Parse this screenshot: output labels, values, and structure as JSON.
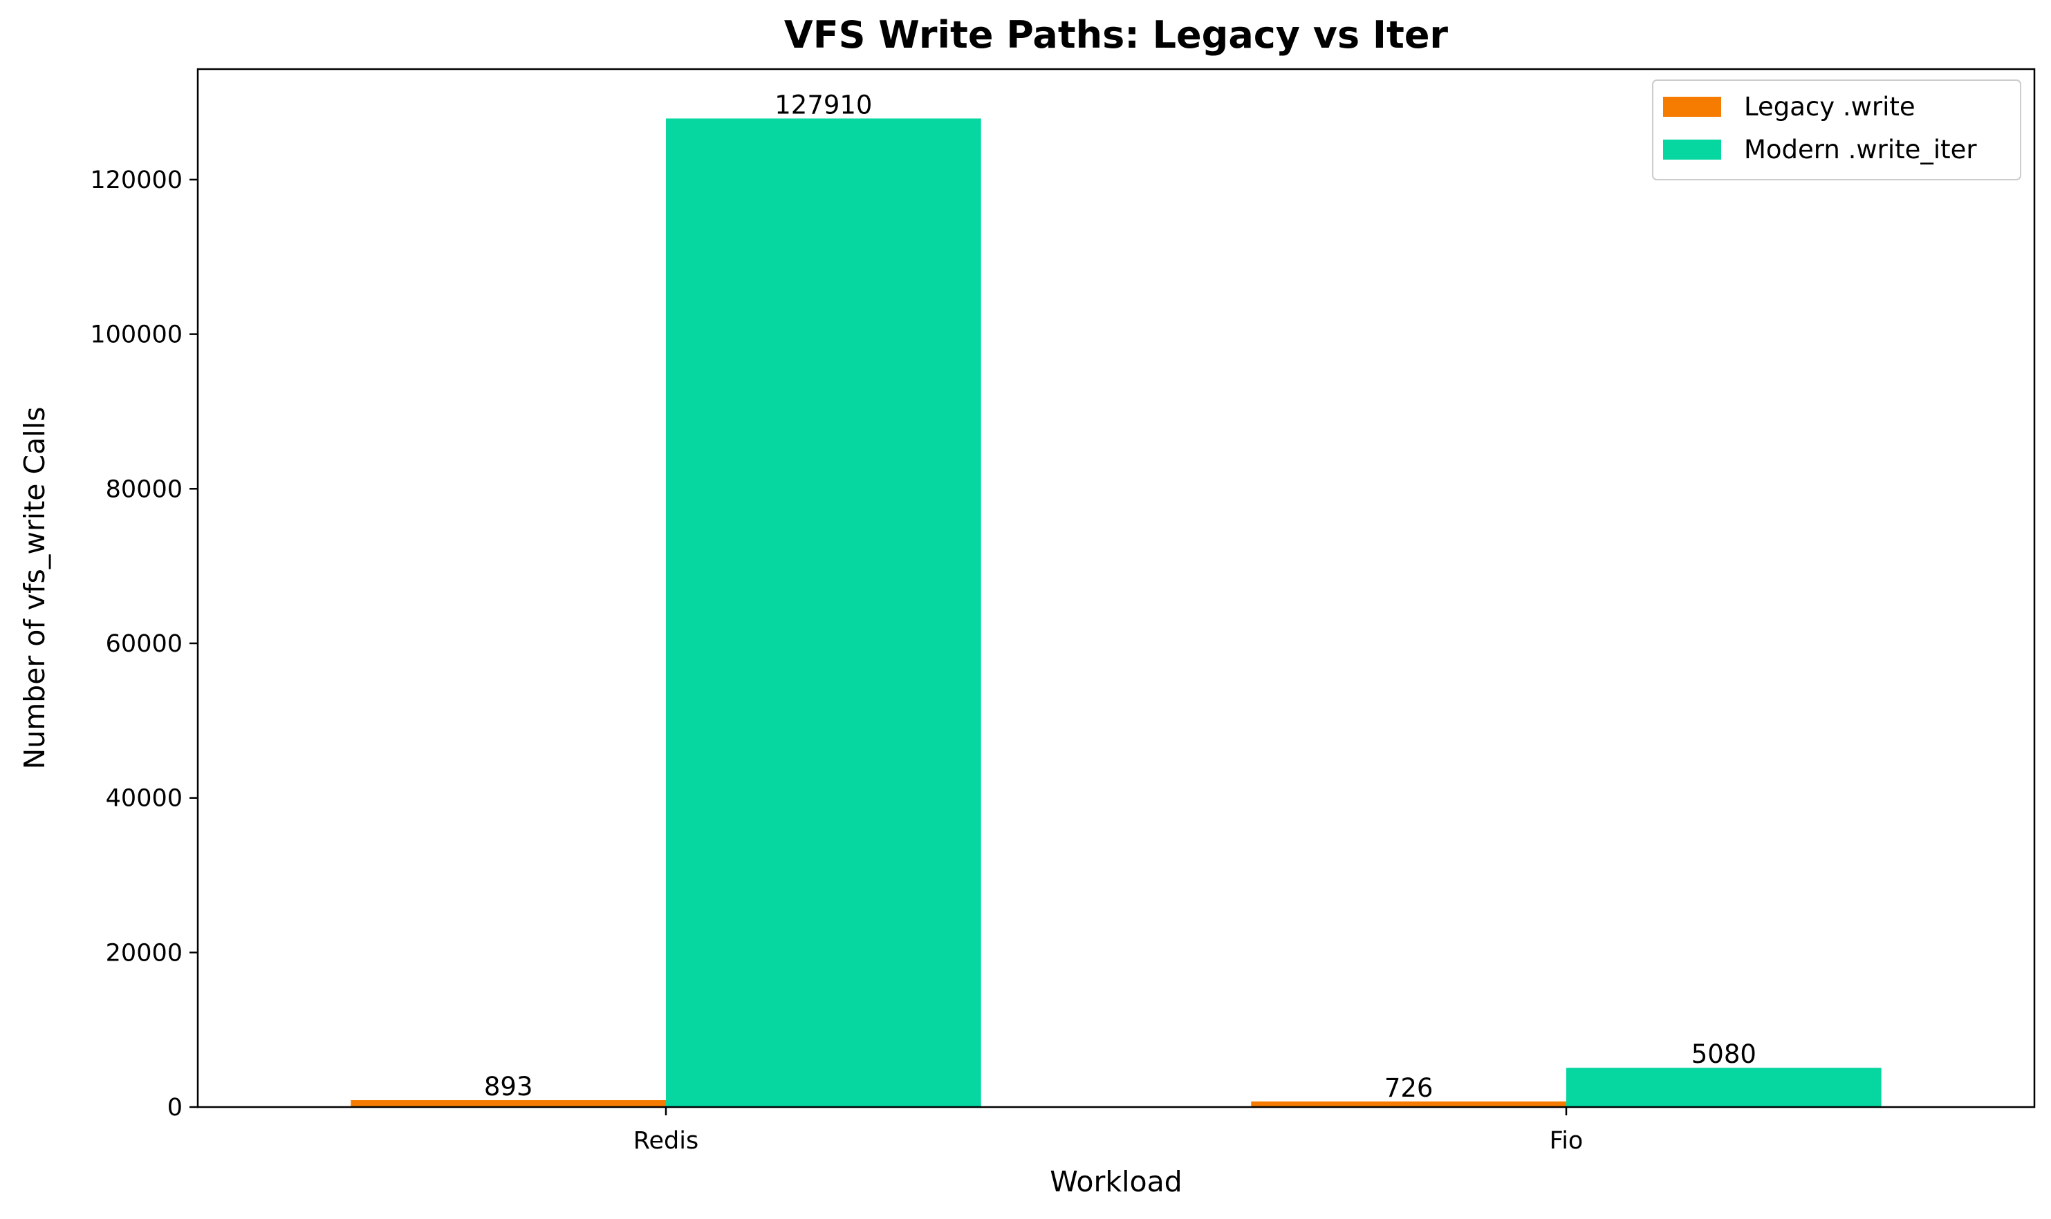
{
  "chart_data": {
    "type": "bar",
    "title": "VFS Write Paths: Legacy vs Iter",
    "xlabel": "Workload",
    "ylabel": "Number of vfs_write Calls",
    "categories": [
      "Redis",
      "Fio"
    ],
    "series": [
      {
        "name": "Legacy .write",
        "values": [
          893,
          726
        ],
        "color": "#f57c00"
      },
      {
        "name": "Modern .write_iter",
        "values": [
          127910,
          5080
        ],
        "color": "#06d6a0"
      }
    ],
    "ylim": [
      0,
      134300
    ],
    "yticks": [
      0,
      20000,
      40000,
      60000,
      80000,
      100000,
      120000
    ],
    "ytick_labels": [
      "0",
      "20000",
      "40000",
      "60000",
      "80000",
      "100000",
      "120000"
    ],
    "data_labels": [
      [
        "893",
        "726"
      ],
      [
        "127910",
        "5080"
      ]
    ],
    "legend": {
      "position": "top-right"
    },
    "grid": false
  }
}
